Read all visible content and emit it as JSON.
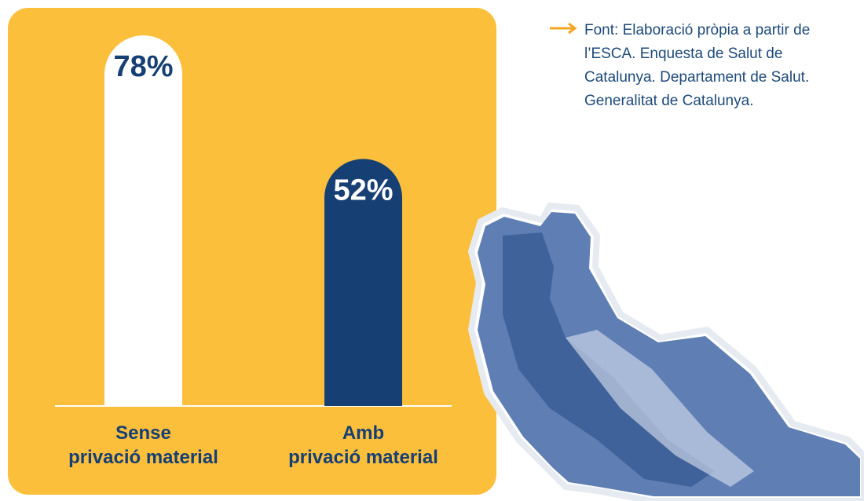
{
  "chart_data": {
    "type": "bar",
    "categories": [
      "Sense\nprivació material",
      "Amb\nprivació material"
    ],
    "values": [
      78,
      52
    ],
    "value_labels": [
      "78%",
      "52%"
    ],
    "colors": [
      "#ffffff",
      "#163f73"
    ],
    "note": "Font: Elaboració pròpia a partir de l’ESCA. Enquesta de Salut de Catalunya. Departament de Salut. Generalitat de Catalunya."
  }
}
